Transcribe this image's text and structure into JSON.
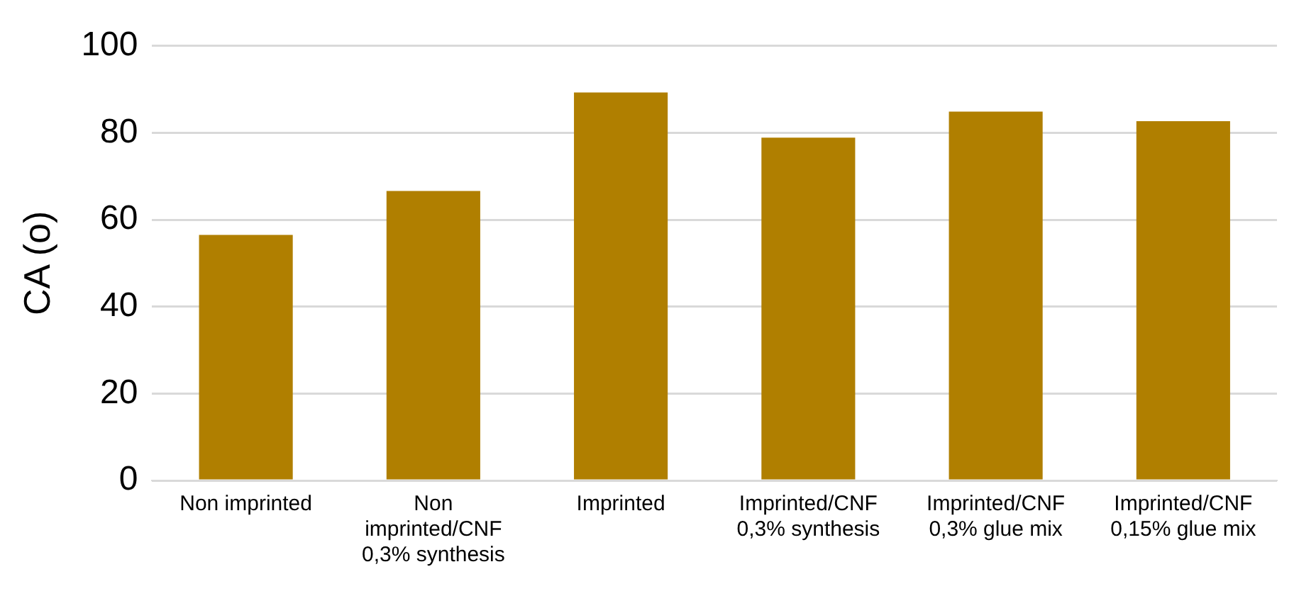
{
  "chart_data": {
    "type": "bar",
    "ylabel": "CA (o)",
    "categories": [
      "Non imprinted",
      "Non imprinted/CNF 0,3% synthesis",
      "Imprinted",
      "Imprinted/CNF 0,3% synthesis",
      "Imprinted/CNF 0,3% glue mix",
      "Imprinted/CNF 0,15% glue mix"
    ],
    "values": [
      56.5,
      66.6,
      89.3,
      78.9,
      84.9,
      82.7
    ],
    "color": "#b07f00",
    "ylim": [
      0,
      100
    ],
    "yticks": [
      0,
      20,
      40,
      60,
      80,
      100
    ],
    "grid": "y",
    "legend": false
  }
}
